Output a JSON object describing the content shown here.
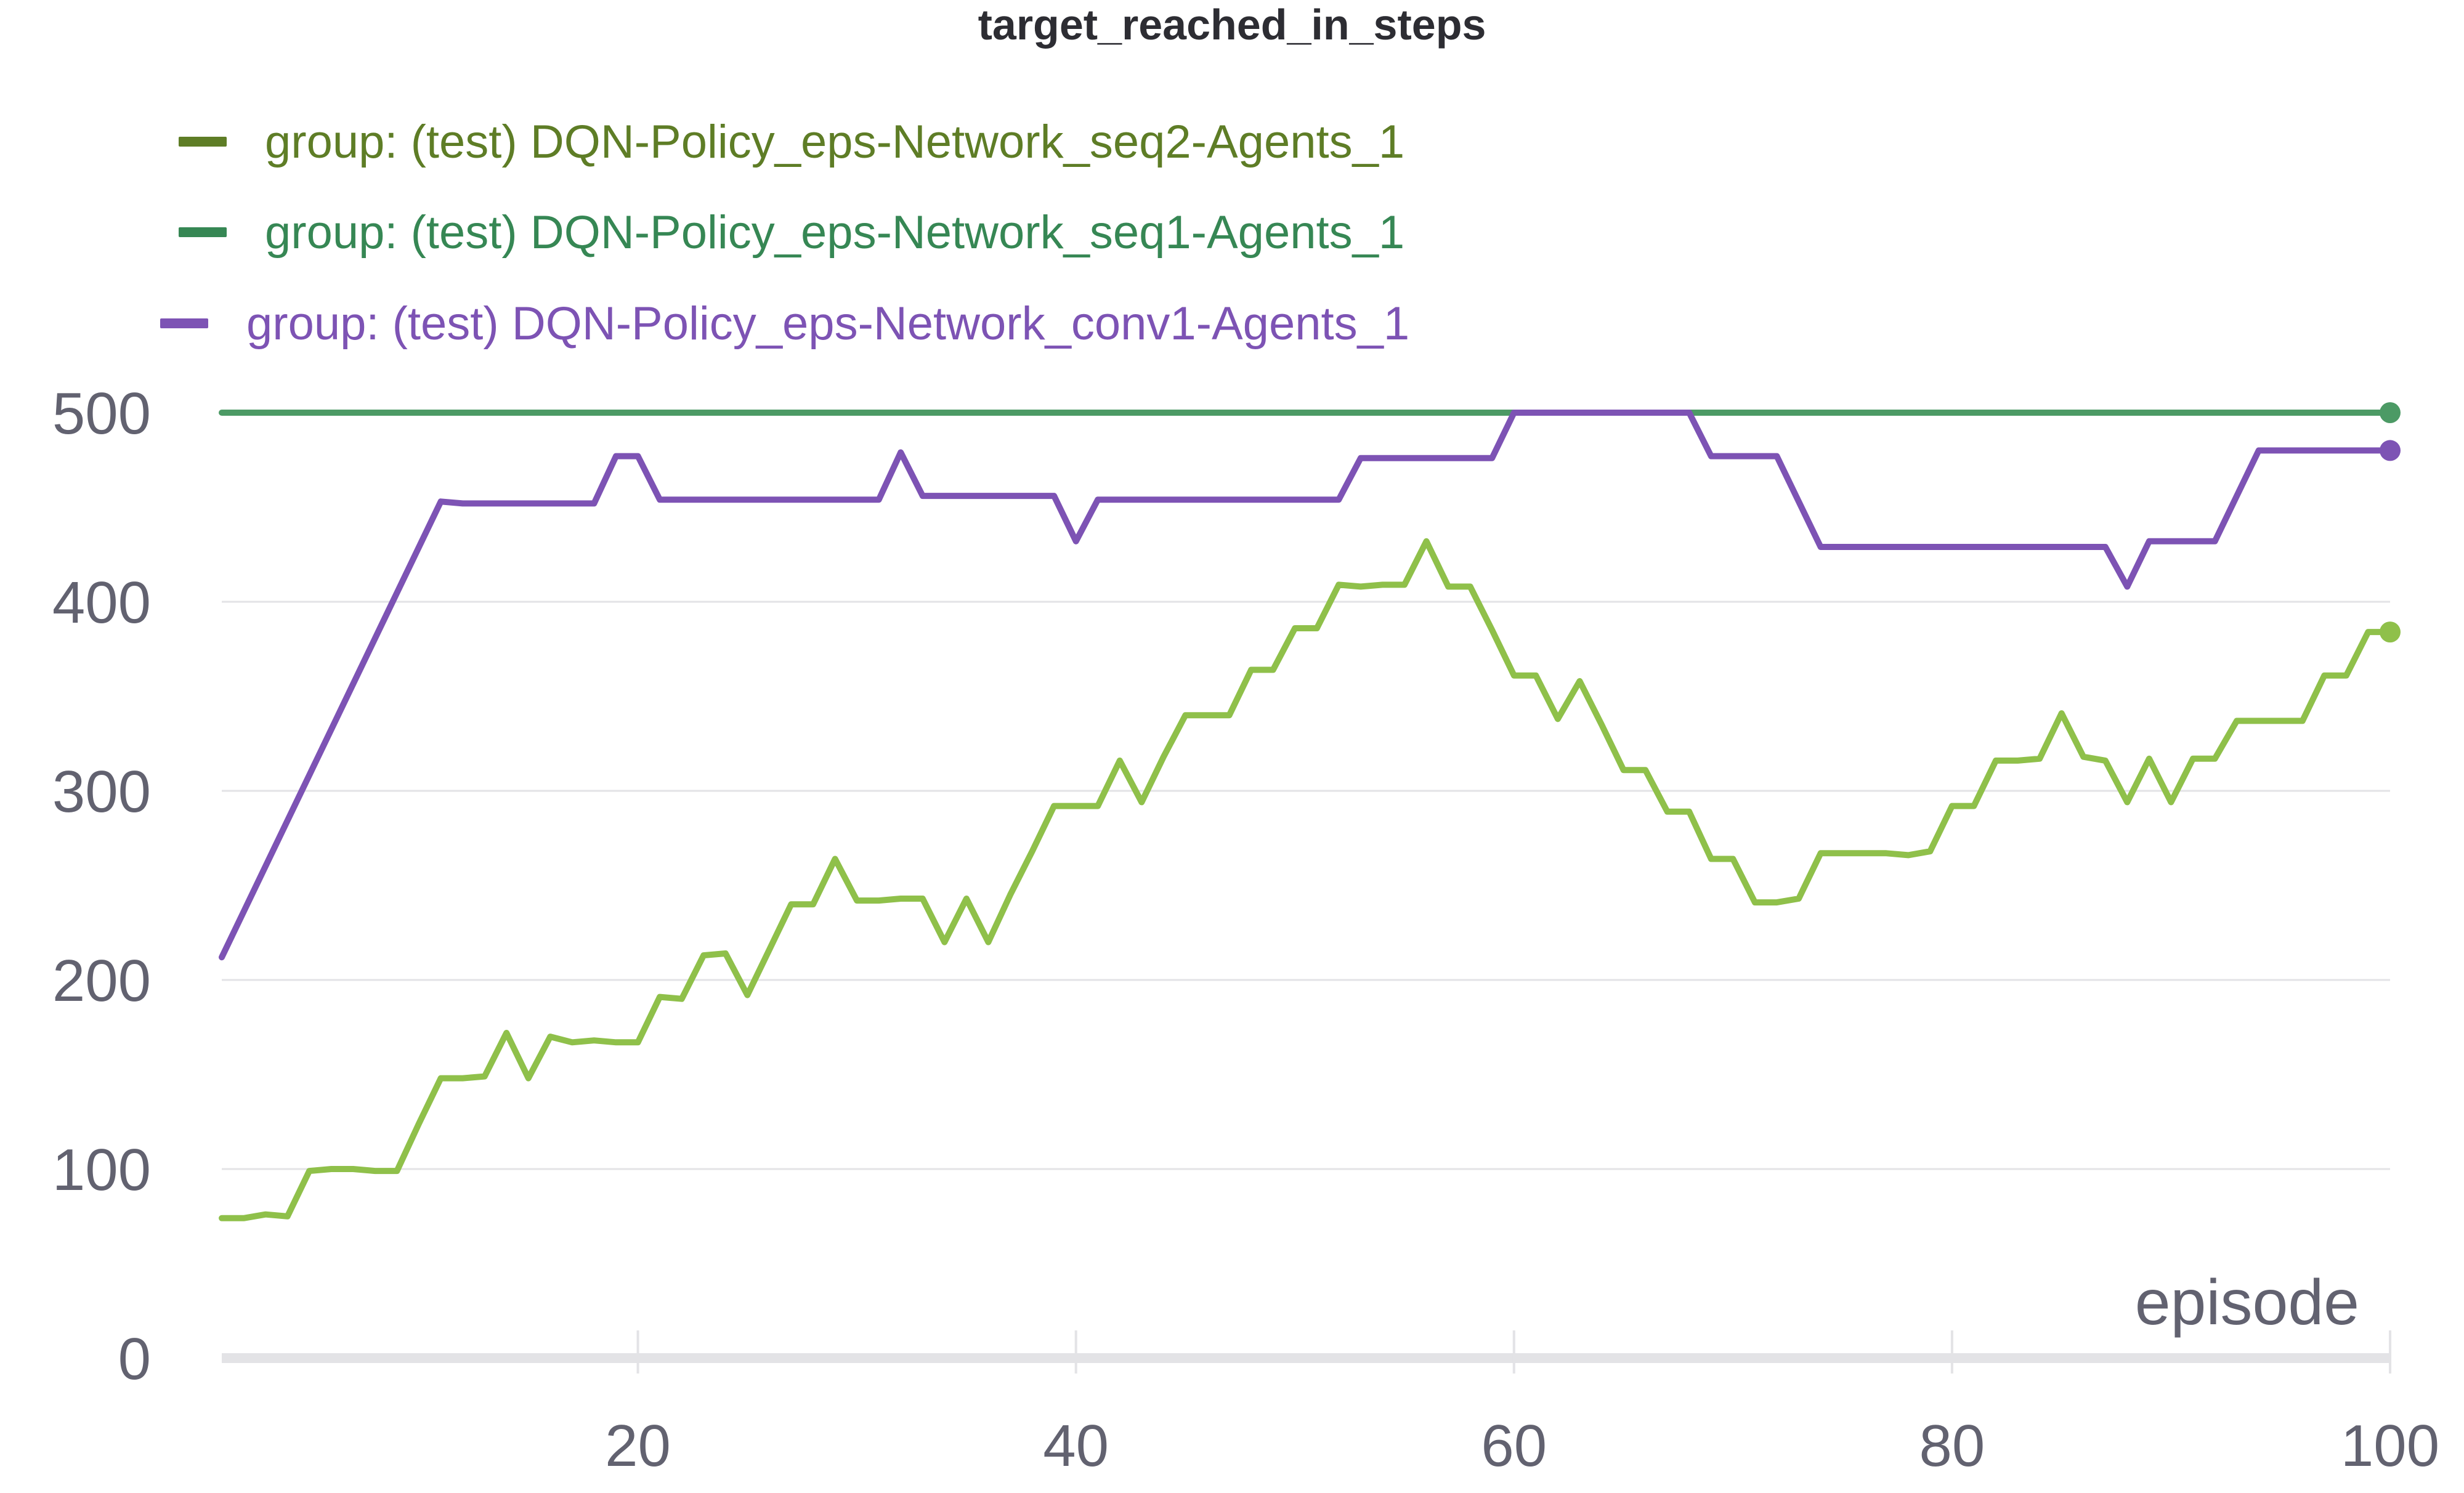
{
  "chart_data": {
    "type": "line",
    "title": "target_reached_in_steps",
    "xlabel": "episode",
    "ylabel": "",
    "xlim": [
      1,
      100
    ],
    "ylim": [
      0,
      500
    ],
    "xticks": [
      20,
      40,
      60,
      80,
      100
    ],
    "yticks": [
      0,
      100,
      200,
      300,
      400,
      500
    ],
    "grid": true,
    "legend_position": "top-left",
    "series": [
      {
        "name": "group: (test) DQN-Policy_eps-Network_seq2-Agents_1",
        "color": "#8fc04a",
        "legend_color": "#5e7d26",
        "values": [
          [
            1,
            74
          ],
          [
            2,
            74
          ],
          [
            3,
            76
          ],
          [
            4,
            75
          ],
          [
            5,
            99
          ],
          [
            6,
            100
          ],
          [
            7,
            100
          ],
          [
            8,
            99
          ],
          [
            9,
            99
          ],
          [
            10,
            124
          ],
          [
            11,
            148
          ],
          [
            12,
            148
          ],
          [
            13,
            149
          ],
          [
            14,
            172
          ],
          [
            15,
            148
          ],
          [
            16,
            170
          ],
          [
            17,
            167
          ],
          [
            18,
            168
          ],
          [
            19,
            167
          ],
          [
            20,
            167
          ],
          [
            21,
            191
          ],
          [
            22,
            190
          ],
          [
            23,
            213
          ],
          [
            24,
            214
          ],
          [
            25,
            192
          ],
          [
            26,
            216
          ],
          [
            27,
            240
          ],
          [
            28,
            240
          ],
          [
            29,
            264
          ],
          [
            30,
            242
          ],
          [
            31,
            242
          ],
          [
            32,
            243
          ],
          [
            33,
            243
          ],
          [
            34,
            220
          ],
          [
            35,
            243
          ],
          [
            36,
            220
          ],
          [
            37,
            245
          ],
          [
            38,
            268
          ],
          [
            39,
            292
          ],
          [
            40,
            292
          ],
          [
            41,
            292
          ],
          [
            42,
            316
          ],
          [
            43,
            294
          ],
          [
            44,
            318
          ],
          [
            45,
            340
          ],
          [
            46,
            340
          ],
          [
            47,
            340
          ],
          [
            48,
            364
          ],
          [
            49,
            364
          ],
          [
            50,
            386
          ],
          [
            51,
            386
          ],
          [
            52,
            409
          ],
          [
            53,
            408
          ],
          [
            54,
            409
          ],
          [
            55,
            409
          ],
          [
            56,
            432
          ],
          [
            57,
            408
          ],
          [
            58,
            408
          ],
          [
            59,
            385
          ],
          [
            60,
            361
          ],
          [
            61,
            361
          ],
          [
            62,
            338
          ],
          [
            63,
            358
          ],
          [
            64,
            335
          ],
          [
            65,
            311
          ],
          [
            66,
            311
          ],
          [
            67,
            289
          ],
          [
            68,
            289
          ],
          [
            69,
            264
          ],
          [
            70,
            264
          ],
          [
            71,
            241
          ],
          [
            72,
            241
          ],
          [
            73,
            243
          ],
          [
            74,
            267
          ],
          [
            75,
            267
          ],
          [
            76,
            267
          ],
          [
            77,
            267
          ],
          [
            78,
            266
          ],
          [
            79,
            268
          ],
          [
            80,
            292
          ],
          [
            81,
            292
          ],
          [
            82,
            316
          ],
          [
            83,
            316
          ],
          [
            84,
            317
          ],
          [
            85,
            341
          ],
          [
            86,
            318
          ],
          [
            87,
            316
          ],
          [
            88,
            294
          ],
          [
            89,
            317
          ],
          [
            90,
            294
          ],
          [
            91,
            317
          ],
          [
            92,
            317
          ],
          [
            93,
            337
          ],
          [
            94,
            337
          ],
          [
            95,
            337
          ],
          [
            96,
            337
          ],
          [
            97,
            361
          ],
          [
            98,
            361
          ],
          [
            99,
            384
          ],
          [
            100,
            384
          ]
        ]
      },
      {
        "name": "group: (test) DQN-Policy_eps-Network_seq1-Agents_1",
        "color": "#4c9a65",
        "legend_color": "#368754",
        "values": [
          [
            1,
            500
          ],
          [
            100,
            500
          ]
        ]
      },
      {
        "name": "group: (test) DQN-Policy_eps-Network_conv1-Agents_1",
        "color": "#7d53b4",
        "legend_color": "#7d53b4",
        "values": [
          [
            1,
            212
          ],
          [
            11,
            453
          ],
          [
            12,
            452
          ],
          [
            18,
            452
          ],
          [
            19,
            477
          ],
          [
            20,
            477
          ],
          [
            21,
            454
          ],
          [
            31,
            454
          ],
          [
            32,
            479
          ],
          [
            33,
            456
          ],
          [
            39,
            456
          ],
          [
            40,
            432
          ],
          [
            41,
            454
          ],
          [
            52,
            454
          ],
          [
            53,
            476
          ],
          [
            59,
            476
          ],
          [
            60,
            500
          ],
          [
            68,
            500
          ],
          [
            69,
            477
          ],
          [
            72,
            477
          ],
          [
            74,
            429
          ],
          [
            87,
            429
          ],
          [
            88,
            408
          ],
          [
            89,
            432
          ],
          [
            92,
            432
          ],
          [
            94,
            480
          ],
          [
            100,
            480
          ]
        ]
      }
    ]
  }
}
